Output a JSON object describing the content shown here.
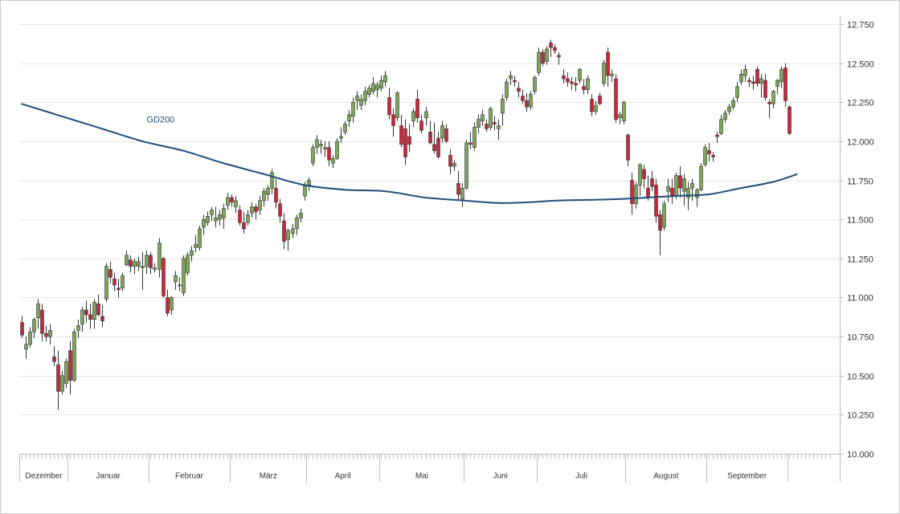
{
  "chart_data": {
    "type": "candlestick",
    "title": "",
    "xlabel": "",
    "ylabel": "",
    "ylim": [
      10000,
      12750
    ],
    "grid": true,
    "colors": {
      "up": "#7fa65a",
      "down": "#c7283a",
      "wick": "#333333",
      "ma": "#1f4e79",
      "grid": "#e6e6e6",
      "axis": "#bbbbbb"
    },
    "y_ticks": [
      {
        "value": 10000,
        "label": "10.000"
      },
      {
        "value": 10250,
        "label": "10.250"
      },
      {
        "value": 10500,
        "label": "10.500"
      },
      {
        "value": 10750,
        "label": "10.750"
      },
      {
        "value": 11000,
        "label": "11.000"
      },
      {
        "value": 11250,
        "label": "11.250"
      },
      {
        "value": 11500,
        "label": "11.500"
      },
      {
        "value": 11750,
        "label": "11.750"
      },
      {
        "value": 12000,
        "label": "12.000"
      },
      {
        "value": 12250,
        "label": "12.250"
      },
      {
        "value": 12500,
        "label": "12.500"
      },
      {
        "value": 12750,
        "label": "12.750"
      }
    ],
    "months": [
      {
        "label": "Dezember",
        "start": 0,
        "end": 12
      },
      {
        "label": "Januar",
        "start": 12,
        "end": 32
      },
      {
        "label": "Februar",
        "start": 32,
        "end": 52
      },
      {
        "label": "März",
        "start": 52,
        "end": 71
      },
      {
        "label": "April",
        "start": 71,
        "end": 89
      },
      {
        "label": "Mai",
        "start": 89,
        "end": 110
      },
      {
        "label": "Juni",
        "start": 110,
        "end": 128
      },
      {
        "label": "Juli",
        "start": 128,
        "end": 150
      },
      {
        "label": "August",
        "start": 150,
        "end": 170
      },
      {
        "label": "September",
        "start": 170,
        "end": 190
      }
    ],
    "series": [
      {
        "name": "GD200",
        "points": [
          [
            0,
            12240
          ],
          [
            10,
            12160
          ],
          [
            20,
            12080
          ],
          [
            30,
            12000
          ],
          [
            40,
            11940
          ],
          [
            50,
            11860
          ],
          [
            60,
            11790
          ],
          [
            70,
            11720
          ],
          [
            80,
            11690
          ],
          [
            90,
            11680
          ],
          [
            100,
            11640
          ],
          [
            110,
            11620
          ],
          [
            118,
            11605
          ],
          [
            126,
            11610
          ],
          [
            132,
            11620
          ],
          [
            140,
            11625
          ],
          [
            148,
            11630
          ],
          [
            155,
            11640
          ],
          [
            162,
            11650
          ],
          [
            170,
            11660
          ],
          [
            178,
            11700
          ],
          [
            186,
            11740
          ],
          [
            192,
            11790
          ]
        ]
      }
    ],
    "candles": [
      [
        10840,
        10880,
        10740,
        10760
      ],
      [
        10670,
        10750,
        10610,
        10700
      ],
      [
        10700,
        10810,
        10680,
        10780
      ],
      [
        10780,
        10870,
        10740,
        10860
      ],
      [
        10870,
        10990,
        10800,
        10960
      ],
      [
        10920,
        10960,
        10720,
        10770
      ],
      [
        10770,
        10820,
        10720,
        10750
      ],
      [
        10750,
        10830,
        10700,
        10790
      ],
      [
        10620,
        10690,
        10560,
        10590
      ],
      [
        10570,
        10660,
        10280,
        10400
      ],
      [
        10400,
        10530,
        10380,
        10500
      ],
      [
        10450,
        10610,
        10420,
        10590
      ],
      [
        10660,
        10720,
        10380,
        10470
      ],
      [
        10470,
        10800,
        10460,
        10780
      ],
      [
        10790,
        10860,
        10740,
        10820
      ],
      [
        10830,
        10940,
        10780,
        10920
      ],
      [
        10920,
        10980,
        10840,
        10890
      ],
      [
        10890,
        10960,
        10800,
        10860
      ],
      [
        10860,
        10990,
        10800,
        10970
      ],
      [
        10960,
        11020,
        10880,
        10890
      ],
      [
        10880,
        10950,
        10810,
        10850
      ],
      [
        10990,
        11220,
        10970,
        11200
      ],
      [
        11180,
        11230,
        11090,
        11130
      ],
      [
        11120,
        11160,
        11040,
        11080
      ],
      [
        11060,
        11120,
        11000,
        11050
      ],
      [
        11060,
        11160,
        11040,
        11140
      ],
      [
        11210,
        11300,
        11200,
        11270
      ],
      [
        11240,
        11270,
        11160,
        11200
      ],
      [
        11200,
        11250,
        11150,
        11230
      ],
      [
        11200,
        11260,
        11170,
        11230
      ],
      [
        11190,
        11290,
        11050,
        11200
      ],
      [
        11200,
        11300,
        11150,
        11270
      ],
      [
        11270,
        11290,
        11150,
        11190
      ],
      [
        11180,
        11220,
        11160,
        11190
      ],
      [
        11180,
        11380,
        11130,
        11350
      ],
      [
        11250,
        11260,
        11000,
        11010
      ],
      [
        11000,
        11050,
        10880,
        10900
      ],
      [
        10920,
        11010,
        10890,
        11000
      ],
      [
        11100,
        11170,
        11050,
        11140
      ],
      [
        11080,
        11130,
        11040,
        11080
      ],
      [
        11030,
        11270,
        11010,
        11250
      ],
      [
        11160,
        11290,
        11140,
        11270
      ],
      [
        11270,
        11330,
        11230,
        11300
      ],
      [
        11320,
        11400,
        11290,
        11340
      ],
      [
        11320,
        11460,
        11300,
        11440
      ],
      [
        11450,
        11530,
        11400,
        11500
      ],
      [
        11480,
        11550,
        11460,
        11520
      ],
      [
        11530,
        11580,
        11490,
        11560
      ],
      [
        11490,
        11580,
        11450,
        11510
      ],
      [
        11500,
        11560,
        11460,
        11530
      ],
      [
        11510,
        11600,
        11440,
        11570
      ],
      [
        11590,
        11670,
        11560,
        11640
      ],
      [
        11640,
        11660,
        11580,
        11610
      ],
      [
        11580,
        11650,
        11540,
        11620
      ],
      [
        11560,
        11590,
        11460,
        11480
      ],
      [
        11480,
        11550,
        11410,
        11440
      ],
      [
        11480,
        11560,
        11460,
        11530
      ],
      [
        11540,
        11610,
        11510,
        11580
      ],
      [
        11580,
        11600,
        11500,
        11550
      ],
      [
        11560,
        11650,
        11530,
        11620
      ],
      [
        11620,
        11700,
        11580,
        11680
      ],
      [
        11660,
        11720,
        11620,
        11700
      ],
      [
        11700,
        11820,
        11660,
        11800
      ],
      [
        11700,
        11760,
        11570,
        11610
      ],
      [
        11600,
        11630,
        11480,
        11520
      ],
      [
        11490,
        11540,
        11310,
        11360
      ],
      [
        11370,
        11440,
        11300,
        11430
      ],
      [
        11410,
        11470,
        11380,
        11440
      ],
      [
        11440,
        11530,
        11400,
        11510
      ],
      [
        11510,
        11570,
        11480,
        11540
      ],
      [
        11650,
        11740,
        11620,
        11720
      ],
      [
        11720,
        11770,
        11680,
        11750
      ],
      [
        11860,
        11980,
        11840,
        11960
      ],
      [
        11960,
        12040,
        11920,
        12010
      ],
      [
        11970,
        12010,
        11920,
        11980
      ],
      [
        11950,
        12000,
        11900,
        11960
      ],
      [
        11960,
        12000,
        11840,
        11880
      ],
      [
        11860,
        11910,
        11830,
        11890
      ],
      [
        11890,
        12020,
        11880,
        12000
      ],
      [
        12020,
        12090,
        11990,
        12030
      ],
      [
        12060,
        12130,
        12040,
        12110
      ],
      [
        12130,
        12200,
        12090,
        12170
      ],
      [
        12160,
        12280,
        12120,
        12250
      ],
      [
        12260,
        12320,
        12200,
        12290
      ],
      [
        12230,
        12300,
        12200,
        12270
      ],
      [
        12260,
        12350,
        12230,
        12320
      ],
      [
        12300,
        12360,
        12280,
        12340
      ],
      [
        12320,
        12410,
        12300,
        12370
      ],
      [
        12330,
        12380,
        12280,
        12360
      ],
      [
        12340,
        12420,
        12320,
        12390
      ],
      [
        12380,
        12450,
        12350,
        12420
      ],
      [
        12280,
        12340,
        12140,
        12170
      ],
      [
        12170,
        12210,
        12030,
        12100
      ],
      [
        12150,
        12320,
        12130,
        12310
      ],
      [
        12100,
        12170,
        11960,
        11980
      ],
      [
        12080,
        12140,
        11850,
        11900
      ],
      [
        12030,
        12110,
        11930,
        11980
      ],
      [
        12130,
        12210,
        12090,
        12190
      ],
      [
        12270,
        12330,
        12120,
        12150
      ],
      [
        12130,
        12170,
        12050,
        12070
      ],
      [
        12150,
        12220,
        12100,
        12190
      ],
      [
        12060,
        12130,
        11980,
        11990
      ],
      [
        11980,
        12120,
        11920,
        11940
      ],
      [
        12020,
        12060,
        11890,
        11900
      ],
      [
        12020,
        12130,
        11990,
        12100
      ],
      [
        12080,
        12110,
        11990,
        12000
      ],
      [
        11910,
        11950,
        11790,
        11840
      ],
      [
        11840,
        11880,
        11810,
        11860
      ],
      [
        11730,
        11810,
        11620,
        11660
      ],
      [
        11630,
        11730,
        11580,
        11700
      ],
      [
        11700,
        12010,
        11690,
        11990
      ],
      [
        11990,
        12060,
        11950,
        11980
      ],
      [
        11960,
        12120,
        11940,
        12090
      ],
      [
        12090,
        12170,
        12050,
        12140
      ],
      [
        12130,
        12200,
        12100,
        12170
      ],
      [
        12110,
        12140,
        12060,
        12080
      ],
      [
        12090,
        12220,
        12070,
        12210
      ],
      [
        12120,
        12160,
        12070,
        12110
      ],
      [
        12080,
        12140,
        12010,
        12100
      ],
      [
        12180,
        12300,
        12100,
        12270
      ],
      [
        12280,
        12400,
        12260,
        12380
      ],
      [
        12400,
        12450,
        12360,
        12420
      ],
      [
        12390,
        12420,
        12350,
        12380
      ],
      [
        12340,
        12380,
        12280,
        12320
      ],
      [
        12290,
        12330,
        12240,
        12260
      ],
      [
        12260,
        12310,
        12190,
        12220
      ],
      [
        12220,
        12320,
        12200,
        12300
      ],
      [
        12320,
        12420,
        12300,
        12410
      ],
      [
        12440,
        12600,
        12420,
        12570
      ],
      [
        12570,
        12590,
        12480,
        12500
      ],
      [
        12510,
        12610,
        12490,
        12590
      ],
      [
        12630,
        12650,
        12540,
        12600
      ],
      [
        12600,
        12620,
        12560,
        12580
      ],
      [
        12550,
        12570,
        12490,
        12540
      ],
      [
        12420,
        12460,
        12370,
        12400
      ],
      [
        12400,
        12440,
        12350,
        12380
      ],
      [
        12380,
        12410,
        12330,
        12370
      ],
      [
        12370,
        12410,
        12320,
        12360
      ],
      [
        12390,
        12470,
        12370,
        12460
      ],
      [
        12350,
        12400,
        12300,
        12330
      ],
      [
        12330,
        12420,
        12300,
        12400
      ],
      [
        12270,
        12300,
        12160,
        12190
      ],
      [
        12190,
        12260,
        12170,
        12230
      ],
      [
        12290,
        12310,
        12230,
        12240
      ],
      [
        12370,
        12520,
        12350,
        12500
      ],
      [
        12570,
        12600,
        12350,
        12420
      ],
      [
        12420,
        12460,
        12380,
        12430
      ],
      [
        12400,
        12430,
        12120,
        12140
      ],
      [
        12150,
        12190,
        12110,
        12170
      ],
      [
        12130,
        12260,
        12110,
        12250
      ],
      [
        12040,
        12050,
        11840,
        11880
      ],
      [
        11750,
        11800,
        11530,
        11600
      ],
      [
        11600,
        11740,
        11570,
        11720
      ],
      [
        11720,
        11860,
        11650,
        11850
      ],
      [
        11820,
        11850,
        11700,
        11760
      ],
      [
        11700,
        11780,
        11620,
        11640
      ],
      [
        11760,
        11810,
        11680,
        11710
      ],
      [
        11720,
        11760,
        11480,
        11520
      ],
      [
        11530,
        11560,
        11270,
        11430
      ],
      [
        11450,
        11620,
        11430,
        11600
      ],
      [
        11680,
        11760,
        11610,
        11710
      ],
      [
        11700,
        11760,
        11600,
        11650
      ],
      [
        11650,
        11800,
        11630,
        11780
      ],
      [
        11780,
        11840,
        11640,
        11700
      ],
      [
        11680,
        11790,
        11590,
        11760
      ],
      [
        11640,
        11740,
        11560,
        11700
      ],
      [
        11700,
        11760,
        11620,
        11730
      ],
      [
        11640,
        11700,
        11580,
        11690
      ],
      [
        11690,
        11860,
        11680,
        11840
      ],
      [
        11850,
        11980,
        11840,
        11960
      ],
      [
        11940,
        11990,
        11870,
        11920
      ],
      [
        11910,
        11930,
        11870,
        11900
      ],
      [
        12040,
        12060,
        11990,
        12030
      ],
      [
        12050,
        12170,
        12040,
        12140
      ],
      [
        12140,
        12200,
        12120,
        12180
      ],
      [
        12190,
        12240,
        12170,
        12220
      ],
      [
        12220,
        12280,
        12200,
        12260
      ],
      [
        12280,
        12380,
        12250,
        12350
      ],
      [
        12380,
        12460,
        12360,
        12430
      ],
      [
        12420,
        12490,
        12380,
        12460
      ],
      [
        12390,
        12410,
        12350,
        12380
      ],
      [
        12380,
        12420,
        12330,
        12370
      ],
      [
        12460,
        12480,
        12350,
        12370
      ],
      [
        12370,
        12430,
        12280,
        12400
      ],
      [
        12390,
        12430,
        12260,
        12280
      ],
      [
        12250,
        12270,
        12150,
        12240
      ],
      [
        12240,
        12330,
        12210,
        12320
      ],
      [
        12350,
        12400,
        12300,
        12390
      ],
      [
        12380,
        12480,
        12340,
        12460
      ],
      [
        12470,
        12500,
        12220,
        12260
      ],
      [
        12220,
        12230,
        12040,
        12050
      ]
    ]
  }
}
